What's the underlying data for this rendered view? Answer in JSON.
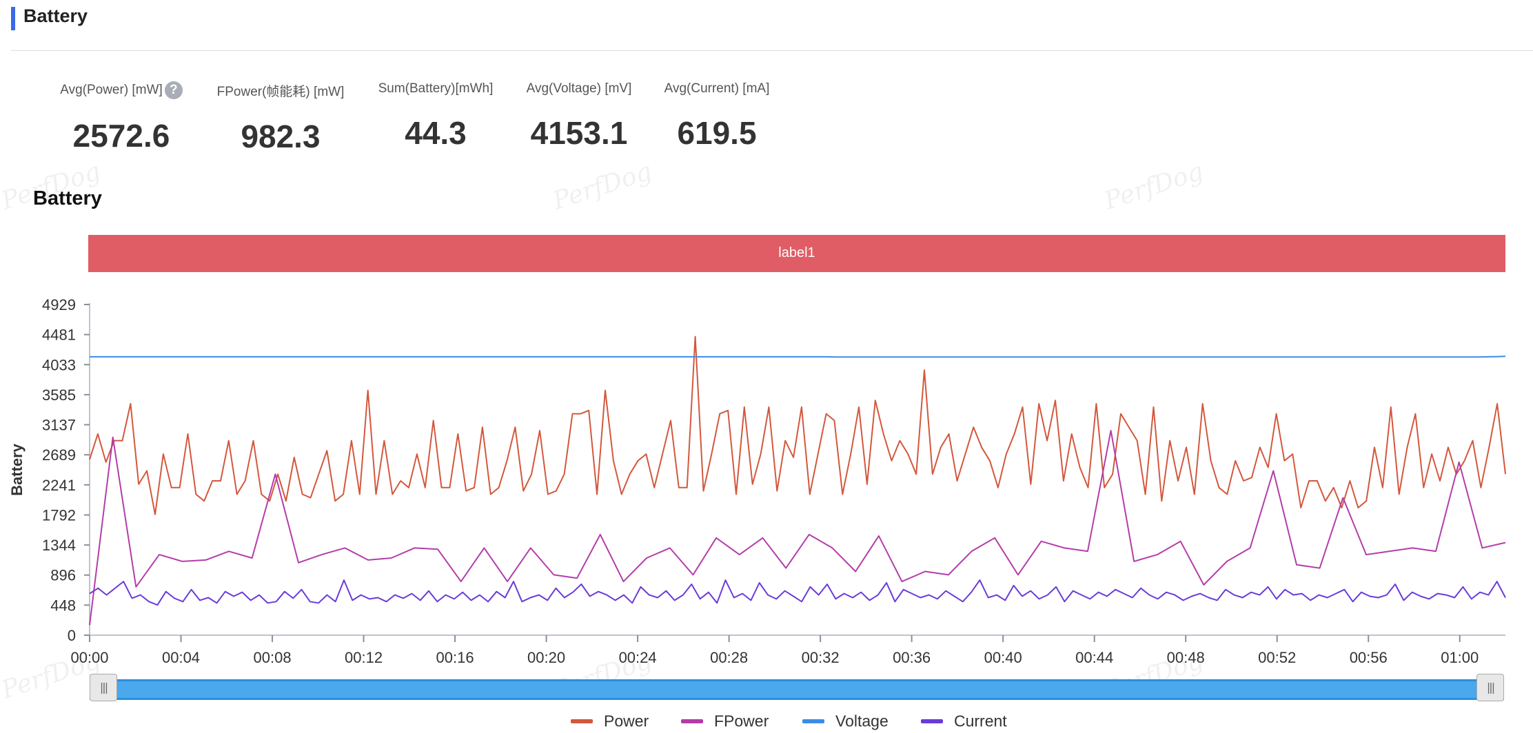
{
  "header": {
    "title": "Battery"
  },
  "stats": [
    {
      "label": "Avg(Power) [mW]",
      "value": "2572.6",
      "help": "?"
    },
    {
      "label": "FPower(帧能耗) [mW]",
      "value": "982.3"
    },
    {
      "label": "Sum(Battery)[mWh]",
      "value": "44.3"
    },
    {
      "label": "Avg(Voltage) [mV]",
      "value": "4153.1"
    },
    {
      "label": "Avg(Current) [mA]",
      "value": "619.5"
    }
  ],
  "watermark": "PerfDog",
  "chart_data": {
    "type": "line",
    "title": "Battery",
    "ylabel": "Battery",
    "xlabel": "",
    "label_band": "label1",
    "ylim": [
      0,
      4929
    ],
    "yticks": [
      0,
      448,
      896,
      1344,
      1792,
      2241,
      2689,
      3137,
      3585,
      4033,
      4481,
      4929
    ],
    "xticks": [
      "00:00",
      "00:04",
      "00:08",
      "00:12",
      "00:16",
      "00:20",
      "00:24",
      "00:28",
      "00:32",
      "00:36",
      "00:40",
      "00:44",
      "00:48",
      "00:52",
      "00:56",
      "01:00"
    ],
    "x_step_seconds": 30,
    "x_range_seconds": [
      0,
      3720
    ],
    "grid": false,
    "legend_position": "bottom",
    "series": [
      {
        "name": "Power",
        "color": "#d3573c",
        "values": [
          2620,
          3000,
          2580,
          2900,
          2900,
          3450,
          2250,
          2450,
          1800,
          2700,
          2200,
          2200,
          3000,
          2100,
          2000,
          2300,
          2300,
          2900,
          2100,
          2300,
          2900,
          2100,
          2000,
          2400,
          2000,
          2650,
          2100,
          2050,
          2400,
          2750,
          2000,
          2100,
          2900,
          2100,
          3650,
          2100,
          2900,
          2100,
          2300,
          2200,
          2700,
          2200,
          3200,
          2200,
          2200,
          3000,
          2150,
          2200,
          3100,
          2100,
          2200,
          2600,
          3100,
          2150,
          2400,
          3050,
          2100,
          2150,
          2400,
          3300,
          3300,
          3350,
          2100,
          3650,
          2600,
          2100,
          2400,
          2600,
          2700,
          2200,
          2700,
          3200,
          2200,
          2200,
          4450,
          2150,
          2700,
          3300,
          3350,
          2100,
          3400,
          2250,
          2700,
          3400,
          2150,
          2900,
          2650,
          3400,
          2100,
          2700,
          3300,
          3200,
          2100,
          2700,
          3400,
          2250,
          3500,
          3000,
          2600,
          2900,
          2700,
          2400,
          3950,
          2400,
          2800,
          3000,
          2300,
          2700,
          3100,
          2800,
          2600,
          2200,
          2700,
          3000,
          3400,
          2250,
          3450,
          2900,
          3500,
          2300,
          3000,
          2500,
          2200,
          3450,
          2200,
          2400,
          3300,
          3100,
          2900,
          2100,
          3400,
          2000,
          2900,
          2300,
          2800,
          2100,
          3450,
          2600,
          2200,
          2100,
          2600,
          2300,
          2350,
          2800,
          2500,
          3300,
          2600,
          2700,
          1900,
          2300,
          2300,
          2000,
          2200,
          1900,
          2300,
          1900,
          2000,
          2800,
          2200,
          3400,
          2100,
          2800,
          3300,
          2200,
          2700,
          2300,
          2800,
          2400,
          2600,
          2900,
          2200,
          2800,
          3450,
          2400
        ]
      },
      {
        "name": "FPower",
        "color": "#b43ca8",
        "values": [
          150,
          2950,
          720,
          1200,
          1100,
          1120,
          1250,
          1150,
          2400,
          1080,
          1200,
          1300,
          1120,
          1150,
          1300,
          1280,
          800,
          1300,
          800,
          1300,
          900,
          850,
          1500,
          800,
          1150,
          1300,
          900,
          1450,
          1200,
          1450,
          1000,
          1500,
          1300,
          950,
          1480,
          800,
          950,
          900,
          1250,
          1450,
          900,
          1400,
          1300,
          1250,
          3050,
          1100,
          1200,
          1400,
          750,
          1100,
          1300,
          2450,
          1050,
          1000,
          2050,
          1200,
          1250,
          1300,
          1250,
          2580,
          1300,
          1380
        ]
      },
      {
        "name": "Voltage",
        "color": "#3c8ce7",
        "values": [
          4150,
          4150,
          4150,
          4150,
          4150,
          4150,
          4150,
          4150,
          4150,
          4150,
          4150,
          4150,
          4150,
          4150,
          4150,
          4150,
          4150,
          4150,
          4150,
          4150,
          4150,
          4150,
          4150,
          4150,
          4150,
          4150,
          4150,
          4150,
          4150,
          4150,
          4150,
          4150,
          4150,
          4150,
          4150,
          4150,
          4150,
          4150,
          4150,
          4150,
          4150,
          4150,
          4150,
          4150,
          4150,
          4150,
          4150,
          4150,
          4150,
          4150,
          4150,
          4150,
          4150,
          4150,
          4150,
          4150,
          4150,
          4150,
          4150,
          4150,
          4150,
          4150,
          4150,
          4150,
          4150,
          4150,
          4150,
          4145,
          4145,
          4145,
          4145,
          4145,
          4145,
          4145,
          4145,
          4145,
          4145,
          4145,
          4145,
          4145,
          4145,
          4145,
          4145,
          4145,
          4145,
          4145,
          4145,
          4145,
          4145,
          4145,
          4145,
          4145,
          4145,
          4145,
          4145,
          4145,
          4145,
          4145,
          4145,
          4145,
          4145,
          4145,
          4145,
          4145,
          4145,
          4145,
          4145,
          4145,
          4145,
          4145,
          4145,
          4145,
          4145,
          4145,
          4145,
          4145,
          4145,
          4145,
          4145,
          4145,
          4145,
          4145,
          4145,
          4145,
          4145,
          4148,
          4152,
          4157
        ]
      },
      {
        "name": "Current",
        "color": "#6a3bd8",
        "values": [
          620,
          700,
          600,
          700,
          800,
          550,
          600,
          500,
          450,
          650,
          550,
          500,
          680,
          520,
          560,
          480,
          650,
          580,
          640,
          520,
          600,
          480,
          500,
          650,
          550,
          680,
          500,
          480,
          600,
          500,
          820,
          520,
          600,
          540,
          560,
          500,
          600,
          550,
          620,
          520,
          660,
          500,
          600,
          540,
          640,
          520,
          600,
          500,
          650,
          560,
          800,
          500,
          560,
          600,
          520,
          700,
          560,
          640,
          760,
          580,
          650,
          600,
          520,
          600,
          480,
          720,
          600,
          560,
          660,
          520,
          600,
          760,
          540,
          640,
          480,
          820,
          560,
          620,
          520,
          780,
          600,
          540,
          660,
          580,
          500,
          720,
          600,
          760,
          540,
          620,
          560,
          640,
          520,
          600,
          780,
          500,
          680,
          620,
          560,
          600,
          540,
          660,
          580,
          500,
          640,
          820,
          560,
          600,
          520,
          740,
          580,
          660,
          540,
          600,
          720,
          500,
          660,
          600,
          540,
          640,
          580,
          680,
          620,
          560,
          700,
          600,
          540,
          640,
          600,
          520,
          580,
          620,
          560,
          520,
          680,
          600,
          560,
          640,
          600,
          720,
          540,
          680,
          600,
          620,
          520,
          600,
          560,
          620,
          680,
          500,
          640,
          580,
          560,
          600,
          760,
          520,
          640,
          580,
          540,
          620,
          600,
          560,
          720,
          540,
          640,
          600,
          800,
          560
        ]
      }
    ]
  }
}
